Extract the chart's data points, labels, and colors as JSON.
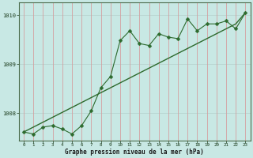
{
  "xlabel": "Graphe pression niveau de la mer (hPa)",
  "hours": [
    0,
    1,
    2,
    3,
    4,
    5,
    6,
    7,
    8,
    9,
    10,
    11,
    12,
    13,
    14,
    15,
    16,
    17,
    18,
    19,
    20,
    21,
    22,
    23
  ],
  "pressure_smooth": [
    1007.62,
    1007.72,
    1007.82,
    1007.92,
    1008.02,
    1008.12,
    1008.22,
    1008.32,
    1008.42,
    1008.52,
    1008.62,
    1008.72,
    1008.82,
    1008.92,
    1009.02,
    1009.12,
    1009.22,
    1009.32,
    1009.42,
    1009.52,
    1009.62,
    1009.72,
    1009.82,
    1010.05
  ],
  "pressure_zigzag": [
    1007.62,
    1007.58,
    1007.72,
    1007.75,
    1007.68,
    1007.58,
    1007.75,
    1008.05,
    1008.52,
    1008.75,
    1009.48,
    1009.68,
    1009.42,
    1009.38,
    1009.62,
    1009.55,
    1009.52,
    1009.92,
    1009.68,
    1009.82,
    1009.82,
    1009.88,
    1009.72,
    1010.05
  ],
  "ylim": [
    1007.45,
    1010.25
  ],
  "yticks": [
    1008,
    1009,
    1010
  ],
  "xticks": [
    0,
    1,
    2,
    3,
    4,
    5,
    6,
    7,
    8,
    9,
    10,
    11,
    12,
    13,
    14,
    15,
    16,
    17,
    18,
    19,
    20,
    21,
    22,
    23
  ],
  "line_color": "#2d6a2d",
  "bg_color": "#c8e8e4",
  "grid_color_v": "#d4a0a0",
  "grid_color_h": "#b8d4d0",
  "border_color": "#4a6a4a",
  "tick_color": "#1a3a1a",
  "xlabel_color": "#1a1a1a"
}
